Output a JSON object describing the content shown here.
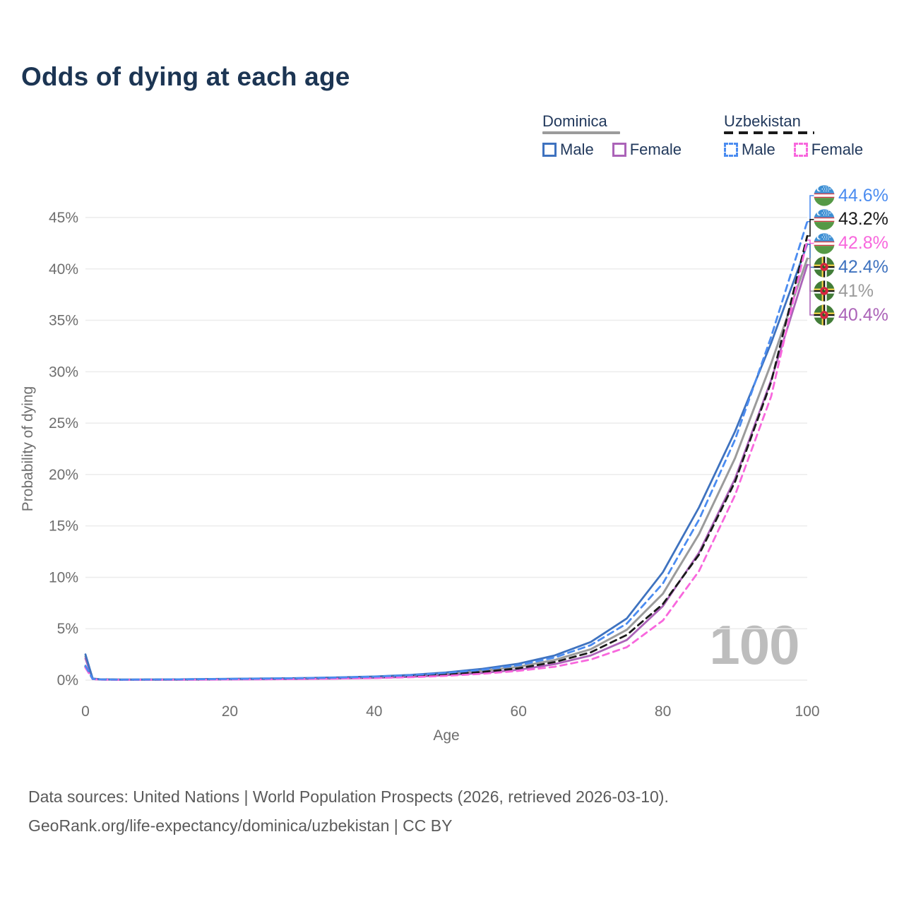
{
  "title": "Odds of dying at each age",
  "watermark": "100",
  "footer": {
    "line1": "Data sources: United Nations | World Population Prospects (2026, retrieved 2026-03-10).",
    "line2": "GeoRank.org/life-expectancy/dominica/uzbekistan | CC BY"
  },
  "legend": {
    "groups": [
      {
        "name": "Dominica",
        "items": [
          {
            "label": "Male"
          },
          {
            "label": "Female"
          }
        ]
      },
      {
        "name": "Uzbekistan",
        "items": [
          {
            "label": "Male"
          },
          {
            "label": "Female"
          }
        ]
      }
    ]
  },
  "colors": {
    "dom_male": "#3e72bf",
    "dom_female": "#ab63b8",
    "dom_total": "#9b9b9b",
    "uzb_male": "#4b8cf0",
    "uzb_female": "#f867dd",
    "uzb_total": "#1a1a1a",
    "grid": "#ececec",
    "title": "#1c3553",
    "legend_text": "#22395c",
    "axis_text": "#6e6e6e",
    "watermark": "#bdbdbd",
    "footer": "#5a5a5a"
  },
  "chart_data": {
    "type": "line",
    "title": "Odds of dying at each age",
    "xlabel": "Age",
    "ylabel": "Probability of dying",
    "xlim": [
      0,
      100
    ],
    "ylim": [
      0,
      45
    ],
    "x_ticks": [
      0,
      20,
      40,
      60,
      80,
      100
    ],
    "y_ticks": [
      0,
      5,
      10,
      15,
      20,
      25,
      30,
      35,
      40,
      45
    ],
    "y_tick_suffix": "%",
    "grid": "horizontal",
    "hover_age": 100,
    "ages": [
      0,
      1,
      2,
      5,
      10,
      15,
      20,
      25,
      30,
      35,
      40,
      45,
      50,
      55,
      60,
      65,
      70,
      75,
      80,
      85,
      90,
      95,
      100
    ],
    "series": [
      {
        "id": "dom_total",
        "name": "Dominica Both Sexes",
        "country": "Dominica",
        "sex": "Total",
        "dashed": false,
        "values": [
          2.3,
          0.13,
          0.07,
          0.045,
          0.05,
          0.07,
          0.1,
          0.13,
          0.16,
          0.21,
          0.28,
          0.4,
          0.6,
          0.9,
          1.3,
          1.95,
          3.0,
          4.9,
          8.4,
          14.2,
          21.6,
          30.8,
          41.0
        ]
      },
      {
        "id": "dom_female",
        "name": "Dominica Female",
        "country": "Dominica",
        "sex": "Female",
        "dashed": false,
        "values": [
          2.1,
          0.12,
          0.06,
          0.04,
          0.04,
          0.05,
          0.07,
          0.09,
          0.12,
          0.16,
          0.22,
          0.32,
          0.48,
          0.7,
          1.0,
          1.55,
          2.4,
          3.9,
          7.2,
          12.4,
          19.6,
          29.2,
          40.4
        ]
      },
      {
        "id": "dom_male",
        "name": "Dominica Male",
        "country": "Dominica",
        "sex": "Male",
        "dashed": false,
        "values": [
          2.5,
          0.15,
          0.08,
          0.05,
          0.06,
          0.09,
          0.13,
          0.16,
          0.2,
          0.26,
          0.35,
          0.5,
          0.75,
          1.1,
          1.6,
          2.4,
          3.7,
          6.0,
          10.5,
          16.8,
          24.2,
          32.8,
          42.4
        ]
      },
      {
        "id": "uzb_total",
        "name": "Uzbekistan Both Sexes",
        "country": "Uzbekistan",
        "sex": "Total",
        "dashed": true,
        "values": [
          1.3,
          0.11,
          0.06,
          0.04,
          0.05,
          0.065,
          0.09,
          0.12,
          0.15,
          0.2,
          0.27,
          0.38,
          0.55,
          0.8,
          1.15,
          1.75,
          2.7,
          4.4,
          7.4,
          12.2,
          19.3,
          29.0,
          43.2
        ]
      },
      {
        "id": "uzb_female",
        "name": "Uzbekistan Female",
        "country": "Uzbekistan",
        "sex": "Female",
        "dashed": true,
        "values": [
          1.2,
          0.1,
          0.05,
          0.035,
          0.04,
          0.045,
          0.06,
          0.08,
          0.11,
          0.15,
          0.2,
          0.28,
          0.42,
          0.62,
          0.9,
          1.3,
          2.0,
          3.2,
          5.8,
          10.6,
          18.0,
          27.6,
          42.8
        ]
      },
      {
        "id": "uzb_male",
        "name": "Uzbekistan Male",
        "country": "Uzbekistan",
        "sex": "Male",
        "dashed": true,
        "values": [
          1.4,
          0.12,
          0.07,
          0.05,
          0.06,
          0.09,
          0.12,
          0.15,
          0.19,
          0.25,
          0.34,
          0.48,
          0.7,
          1.0,
          1.45,
          2.2,
          3.4,
          5.5,
          9.4,
          15.6,
          23.4,
          33.4,
          44.6
        ]
      }
    ],
    "end_labels": [
      {
        "text": "44.6%",
        "value": 44.6,
        "series": "uzb_male",
        "flag": "uzbekistan"
      },
      {
        "text": "43.2%",
        "value": 43.2,
        "series": "uzb_total",
        "flag": "uzbekistan"
      },
      {
        "text": "42.8%",
        "value": 42.8,
        "series": "uzb_female",
        "flag": "uzbekistan"
      },
      {
        "text": "42.4%",
        "value": 42.4,
        "series": "dom_male",
        "flag": "dominica"
      },
      {
        "text": "41%",
        "value": 41.0,
        "series": "dom_total",
        "flag": "dominica"
      },
      {
        "text": "40.4%",
        "value": 40.4,
        "series": "dom_female",
        "flag": "dominica"
      }
    ]
  }
}
